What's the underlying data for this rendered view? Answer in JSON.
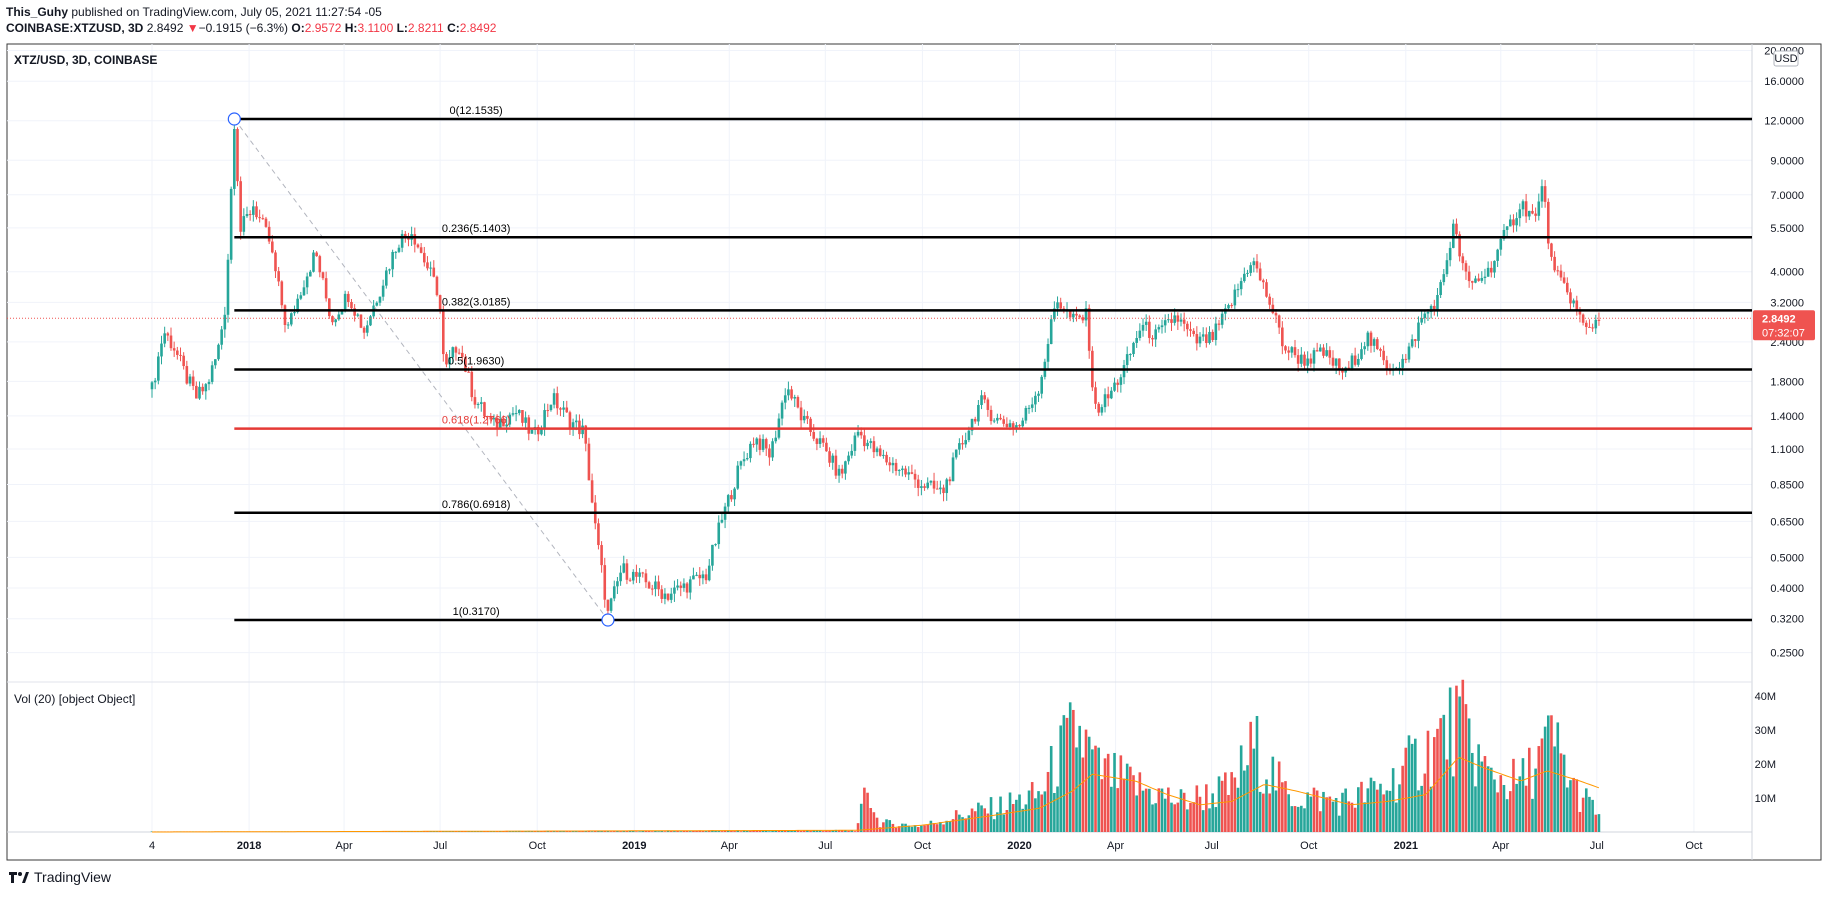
{
  "header": {
    "author": "This_Guhy",
    "published_text": "published on TradingView.com, July 05, 2021 11:27:54 -05",
    "symbol": "COINBASE:XTZUSD, 3D",
    "last": "2.8492",
    "change_arrow": "▼",
    "change": "−0.1915 (−6.3%)",
    "o_label": "O:",
    "o": "2.9572",
    "h_label": "H:",
    "h": "3.1100",
    "l_label": "L:",
    "l": "2.8211",
    "c_label": "C:",
    "c": "2.8492"
  },
  "pane_title": "XTZ/USD, 3D, COINBASE",
  "volume_title": "Vol (20) [object Object]",
  "currency_label": "USD",
  "price_badge": {
    "value": "2.8492",
    "countdown": "07:32:07"
  },
  "brand": "TradingView",
  "colors": {
    "up": "#26a69a",
    "down": "#ef5350",
    "fib": "#000000",
    "fib_highlight": "#e53935",
    "vol_ma": "#ff9800",
    "anchor": "#2962ff"
  },
  "chart_data": {
    "type": "candlestick",
    "y_scale": "log",
    "y_axis_ticks": [
      20.0,
      16.0,
      12.0,
      9.0,
      7.0,
      5.5,
      4.0,
      3.2,
      2.4,
      1.8,
      1.4,
      1.1,
      0.85,
      0.65,
      0.5,
      0.4,
      0.32,
      0.25
    ],
    "y_axis_labels": [
      "20.0000",
      "16.0000",
      "12.0000",
      "9.0000",
      "7.0000",
      "5.5000",
      "4.0000",
      "3.2000",
      "2.4000",
      "1.8000",
      "1.4000",
      "1.1000",
      "0.8500",
      "0.6500",
      "0.5000",
      "0.4000",
      "0.3200",
      "0.2500"
    ],
    "x_axis_ticks": [
      {
        "label": "4",
        "date": "2017-10-01"
      },
      {
        "label": "2018",
        "date": "2018-01-01"
      },
      {
        "label": "Apr",
        "date": "2018-04-01"
      },
      {
        "label": "Jul",
        "date": "2018-07-01"
      },
      {
        "label": "Oct",
        "date": "2018-10-01"
      },
      {
        "label": "2019",
        "date": "2019-01-01"
      },
      {
        "label": "Apr",
        "date": "2019-04-01"
      },
      {
        "label": "Jul",
        "date": "2019-07-01"
      },
      {
        "label": "Oct",
        "date": "2019-10-01"
      },
      {
        "label": "2020",
        "date": "2020-01-01"
      },
      {
        "label": "Apr",
        "date": "2020-04-01"
      },
      {
        "label": "Jul",
        "date": "2020-07-01"
      },
      {
        "label": "Oct",
        "date": "2020-10-01"
      },
      {
        "label": "2021",
        "date": "2021-01-01"
      },
      {
        "label": "Apr",
        "date": "2021-04-01"
      },
      {
        "label": "Jul",
        "date": "2021-07-01"
      },
      {
        "label": "Oct",
        "date": "2021-10-01"
      }
    ],
    "price_path": [
      [
        "2017-10-01",
        1.7
      ],
      [
        "2017-10-12",
        2.6
      ],
      [
        "2017-10-22",
        2.3
      ],
      [
        "2017-11-01",
        1.9
      ],
      [
        "2017-11-12",
        1.6
      ],
      [
        "2017-11-22",
        1.75
      ],
      [
        "2017-12-02",
        2.2
      ],
      [
        "2017-12-10",
        3.2
      ],
      [
        "2017-12-18",
        12.0
      ],
      [
        "2017-12-24",
        5.4
      ],
      [
        "2018-01-05",
        6.5
      ],
      [
        "2018-01-20",
        5.0
      ],
      [
        "2018-02-06",
        2.6
      ],
      [
        "2018-02-20",
        3.6
      ],
      [
        "2018-03-05",
        4.6
      ],
      [
        "2018-03-20",
        2.8
      ],
      [
        "2018-04-05",
        3.4
      ],
      [
        "2018-04-20",
        2.6
      ],
      [
        "2018-05-06",
        3.6
      ],
      [
        "2018-05-22",
        5.0
      ],
      [
        "2018-06-04",
        5.4
      ],
      [
        "2018-06-18",
        4.2
      ],
      [
        "2018-06-30",
        3.4
      ],
      [
        "2018-07-05",
        1.9
      ],
      [
        "2018-07-18",
        2.4
      ],
      [
        "2018-08-02",
        1.6
      ],
      [
        "2018-08-20",
        1.3
      ],
      [
        "2018-09-10",
        1.45
      ],
      [
        "2018-09-28",
        1.2
      ],
      [
        "2018-10-15",
        1.6
      ],
      [
        "2018-11-01",
        1.35
      ],
      [
        "2018-11-14",
        1.25
      ],
      [
        "2018-11-25",
        0.62
      ],
      [
        "2018-12-07",
        0.33
      ],
      [
        "2018-12-20",
        0.46
      ],
      [
        "2019-01-10",
        0.42
      ],
      [
        "2019-02-01",
        0.38
      ],
      [
        "2019-02-20",
        0.41
      ],
      [
        "2019-03-10",
        0.44
      ],
      [
        "2019-03-25",
        0.66
      ],
      [
        "2019-04-10",
        0.95
      ],
      [
        "2019-04-25",
        1.2
      ],
      [
        "2019-05-10",
        1.05
      ],
      [
        "2019-05-25",
        1.75
      ],
      [
        "2019-06-10",
        1.35
      ],
      [
        "2019-06-30",
        1.1
      ],
      [
        "2019-07-15",
        0.9
      ],
      [
        "2019-08-01",
        1.25
      ],
      [
        "2019-08-20",
        1.05
      ],
      [
        "2019-09-10",
        0.95
      ],
      [
        "2019-10-01",
        0.85
      ],
      [
        "2019-10-20",
        0.8
      ],
      [
        "2019-11-05",
        1.1
      ],
      [
        "2019-11-25",
        1.55
      ],
      [
        "2019-12-12",
        1.35
      ],
      [
        "2020-01-01",
        1.3
      ],
      [
        "2020-01-20",
        1.75
      ],
      [
        "2020-02-05",
        3.3
      ],
      [
        "2020-02-20",
        2.8
      ],
      [
        "2020-03-05",
        2.9
      ],
      [
        "2020-03-12",
        1.45
      ],
      [
        "2020-03-25",
        1.6
      ],
      [
        "2020-04-10",
        2.0
      ],
      [
        "2020-04-25",
        2.7
      ],
      [
        "2020-05-10",
        2.5
      ],
      [
        "2020-05-28",
        2.9
      ],
      [
        "2020-06-15",
        2.4
      ],
      [
        "2020-07-01",
        2.45
      ],
      [
        "2020-07-18",
        3.1
      ],
      [
        "2020-08-08",
        4.4
      ],
      [
        "2020-08-25",
        3.2
      ],
      [
        "2020-09-08",
        2.3
      ],
      [
        "2020-09-25",
        2.1
      ],
      [
        "2020-10-15",
        2.2
      ],
      [
        "2020-11-05",
        1.9
      ],
      [
        "2020-11-25",
        2.5
      ],
      [
        "2020-12-15",
        2.0
      ],
      [
        "2021-01-01",
        2.1
      ],
      [
        "2021-01-15",
        2.8
      ],
      [
        "2021-02-01",
        3.3
      ],
      [
        "2021-02-15",
        5.5
      ],
      [
        "2021-03-01",
        3.6
      ],
      [
        "2021-03-20",
        4.0
      ],
      [
        "2021-04-05",
        5.2
      ],
      [
        "2021-04-20",
        6.6
      ],
      [
        "2021-05-05",
        5.8
      ],
      [
        "2021-05-10",
        7.7
      ],
      [
        "2021-05-20",
        4.0
      ],
      [
        "2021-06-05",
        3.4
      ],
      [
        "2021-06-20",
        2.6
      ],
      [
        "2021-07-03",
        2.85
      ]
    ],
    "fib_levels": [
      {
        "label": "0(12.1535)",
        "value": 12.1535,
        "highlight": false
      },
      {
        "label": "0.236(5.1403)",
        "value": 5.1403,
        "highlight": false
      },
      {
        "label": "0.382(3.0185)",
        "value": 3.0185,
        "highlight": false
      },
      {
        "label": "0.5(1.9630)",
        "value": 1.963,
        "highlight": false
      },
      {
        "label": "0.618(1.2766)",
        "value": 1.2766,
        "highlight": true
      },
      {
        "label": "0.786(0.6918)",
        "value": 0.6918,
        "highlight": false
      },
      {
        "label": "1(0.3170)",
        "value": 0.317,
        "highlight": false
      }
    ],
    "fib_anchor_start": [
      "2017-12-18",
      12.1535
    ],
    "fib_anchor_end": [
      "2018-12-07",
      0.317
    ],
    "current_price": 2.8492,
    "volume": {
      "y_axis_ticks": [
        10,
        20,
        30,
        40
      ],
      "y_axis_labels": [
        "10M",
        "20M",
        "30M",
        "40M"
      ],
      "unit": "M",
      "profile": [
        [
          "2017-10-01",
          0
        ],
        [
          "2019-07-31",
          0.5
        ],
        [
          "2019-08-10",
          15
        ],
        [
          "2019-08-20",
          3
        ],
        [
          "2019-10-01",
          2
        ],
        [
          "2019-11-10",
          6
        ],
        [
          "2019-12-10",
          8
        ],
        [
          "2020-01-20",
          12
        ],
        [
          "2020-02-10",
          26
        ],
        [
          "2020-02-25",
          33
        ],
        [
          "2020-03-15",
          20
        ],
        [
          "2020-04-20",
          15
        ],
        [
          "2020-06-01",
          10
        ],
        [
          "2020-07-20",
          14
        ],
        [
          "2020-08-10",
          28
        ],
        [
          "2020-09-10",
          12
        ],
        [
          "2020-11-01",
          10
        ],
        [
          "2020-12-10",
          14
        ],
        [
          "2021-01-20",
          26
        ],
        [
          "2021-02-20",
          36
        ],
        [
          "2021-03-20",
          18
        ],
        [
          "2021-04-20",
          16
        ],
        [
          "2021-05-20",
          30
        ],
        [
          "2021-06-10",
          14
        ],
        [
          "2021-07-03",
          6
        ]
      ],
      "ma_path": [
        [
          "2017-10-01",
          0
        ],
        [
          "2019-07-31",
          0.5
        ],
        [
          "2019-10-01",
          2
        ],
        [
          "2019-12-10",
          5
        ],
        [
          "2020-01-20",
          7
        ],
        [
          "2020-02-20",
          12
        ],
        [
          "2020-03-10",
          17
        ],
        [
          "2020-04-20",
          15
        ],
        [
          "2020-05-20",
          11
        ],
        [
          "2020-06-20",
          8
        ],
        [
          "2020-07-20",
          9
        ],
        [
          "2020-08-20",
          14
        ],
        [
          "2020-09-20",
          12
        ],
        [
          "2020-11-10",
          8
        ],
        [
          "2020-12-15",
          9
        ],
        [
          "2021-01-20",
          11
        ],
        [
          "2021-02-20",
          22
        ],
        [
          "2021-03-15",
          19
        ],
        [
          "2021-04-20",
          15
        ],
        [
          "2021-05-15",
          18
        ],
        [
          "2021-06-15",
          15
        ],
        [
          "2021-07-03",
          13
        ]
      ]
    }
  }
}
